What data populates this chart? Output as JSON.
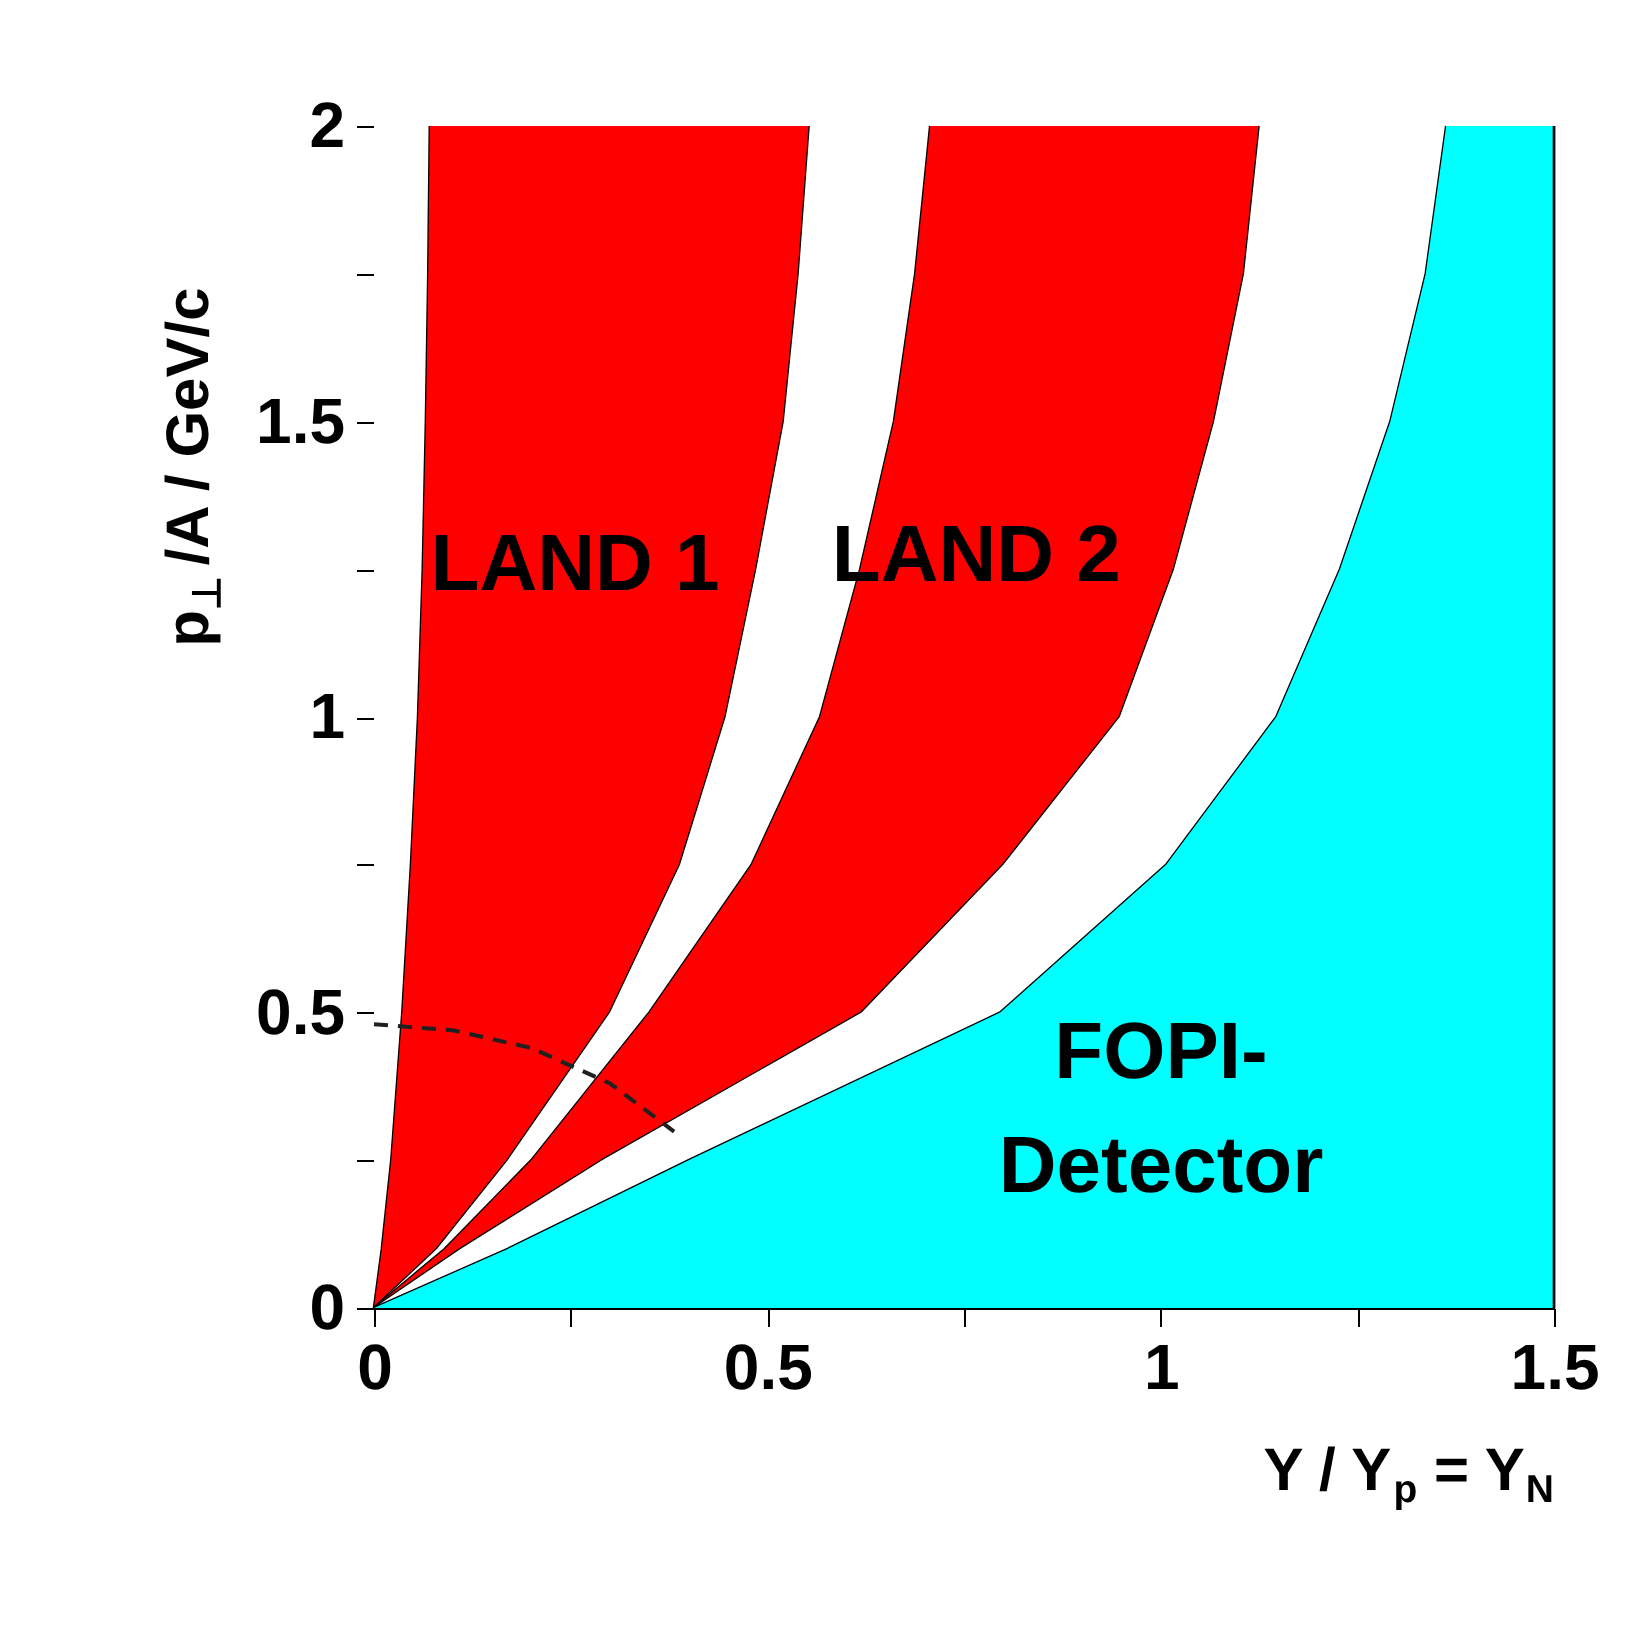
{
  "chart_data": {
    "type": "area",
    "orientation": "horizontal",
    "stacked": true,
    "xlabel": "Y / Y$_{p}$ = Y$_{N}$",
    "ylabel": "p$_{⊥}$ /A / GeV/c",
    "xlim": [
      0,
      1.5
    ],
    "ylim": [
      0,
      2
    ],
    "xticks": [
      0,
      {
        "value": 0.25,
        "label": null
      },
      0.5,
      {
        "value": 0.75,
        "label": null
      },
      1,
      {
        "value": 1.25,
        "label": null
      },
      1.5
    ],
    "yticks": [
      0,
      {
        "value": 0.25,
        "label": null
      },
      0.5,
      {
        "value": 0.75,
        "label": null
      },
      1,
      {
        "value": 1.25,
        "label": null
      },
      1.5,
      {
        "value": 1.75,
        "label": null
      },
      2
    ],
    "x": [
      0,
      0.1,
      0.25,
      0.5,
      0.75,
      1,
      1.25,
      1.5,
      1.75,
      2
    ],
    "series": [
      {
        "color": "#ffffff",
        "values": [
          0,
          0.01,
          0.022,
          0.036,
          0.047,
          0.056,
          0.062,
          0.066,
          0.069,
          0.071
        ]
      },
      {
        "name": "LAND 1",
        "color": "#ff0000",
        "values": [
          0,
          0.07,
          0.148,
          0.264,
          0.342,
          0.391,
          0.424,
          0.455,
          0.471,
          0.483
        ]
      },
      {
        "color": "#ffffff",
        "values": [
          0,
          0.01,
          0.03,
          0.05,
          0.091,
          0.12,
          0.132,
          0.14,
          0.148,
          0.153
        ]
      },
      {
        "name": "LAND 2",
        "color": "#ff0000",
        "values": [
          0,
          0.02,
          0.09,
          0.27,
          0.32,
          0.381,
          0.399,
          0.407,
          0.418,
          0.419
        ]
      },
      {
        "color": "#ffffff",
        "values": [
          0,
          0.06,
          0.11,
          0.176,
          0.207,
          0.199,
          0.211,
          0.224,
          0.231,
          0.237
        ]
      },
      {
        "name": "FOPI-Detector",
        "color": "#00ffff",
        "values": [
          1.5,
          1.33,
          1.1,
          0.704,
          0.493,
          0.353,
          0.272,
          0.208,
          0.163,
          0.137
        ]
      },
      {
        "type": "line",
        "color": "#202020",
        "line_style": "dashed",
        "x": [
          0.48,
          0.47,
          0.44,
          0.38,
          0.29
        ],
        "values": [
          0,
          0.1,
          0.2,
          0.3,
          0.39
        ]
      }
    ]
  }
}
